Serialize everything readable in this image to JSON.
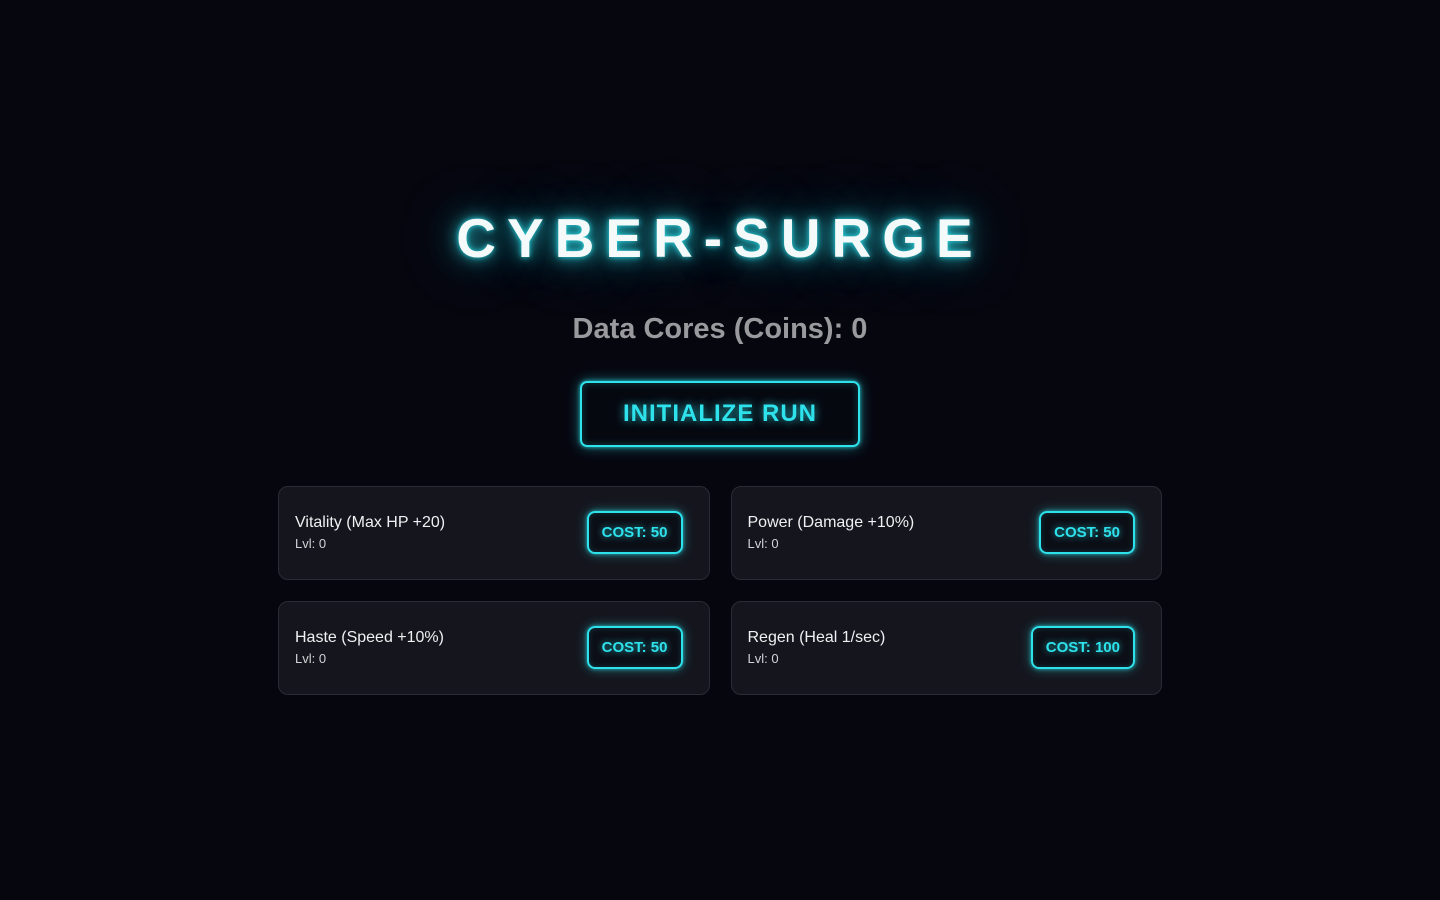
{
  "colors": {
    "background": "#06060f",
    "accent_cyan": "#2ee2ec",
    "card_background": "#15151d",
    "card_border": "#2b2b35",
    "subtitle_gray": "#9a9a9e",
    "title_white": "#f4f9f9"
  },
  "header": {
    "title": "CYBER-SURGE",
    "coins_label": "Data Cores (Coins): 0"
  },
  "start": {
    "label": "INITIALIZE RUN"
  },
  "upgrades": [
    {
      "name": "Vitality (Max HP +20)",
      "level": "Lvl: 0",
      "cost_label": "COST: 50"
    },
    {
      "name": "Power (Damage +10%)",
      "level": "Lvl: 0",
      "cost_label": "COST: 50"
    },
    {
      "name": "Haste (Speed +10%)",
      "level": "Lvl: 0",
      "cost_label": "COST: 50"
    },
    {
      "name": "Regen (Heal 1/sec)",
      "level": "Lvl: 0",
      "cost_label": "COST: 100"
    }
  ]
}
